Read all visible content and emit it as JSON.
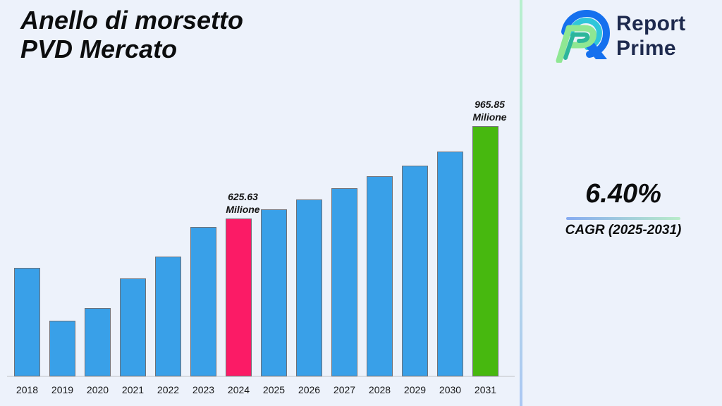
{
  "title": {
    "line1": "Anello di morsetto",
    "line2": "PVD Mercato"
  },
  "brand": {
    "name_line1": "Report",
    "name_line2": "Prime",
    "colors": {
      "text": "#1e2a4e",
      "logo_blue": "#1570ee",
      "logo_cyan": "#2fc6da",
      "logo_light_green": "#8fe793",
      "logo_teal_green": "#2db69b"
    }
  },
  "cagr": {
    "value": "6.40%",
    "label": "CAGR (2025-2031)"
  },
  "chart_data": {
    "type": "bar",
    "title": "Anello di morsetto PVD Mercato",
    "xlabel": "",
    "ylabel": "",
    "grid": false,
    "y_axis_visible": false,
    "legend": null,
    "categories": [
      "2018",
      "2019",
      "2020",
      "2021",
      "2022",
      "2023",
      "2024",
      "2025",
      "2026",
      "2027",
      "2028",
      "2029",
      "2030",
      "2031"
    ],
    "values": [
      444,
      249,
      296,
      405,
      485,
      594,
      625.63,
      659,
      696,
      737,
      781,
      820,
      872,
      965.85
    ],
    "labeled_values_only": {
      "2024": 625.63,
      "2031": 965.85
    },
    "unit_label": "Milione",
    "labeled_points": [
      {
        "category": "2024",
        "value_label": "625.63",
        "unit_label": "Milione"
      },
      {
        "category": "2031",
        "value_label": "965.85",
        "unit_label": "Milione"
      }
    ],
    "colors": {
      "default_bar": "#39a0e8",
      "per_year": {
        "2024": "#fb1b66",
        "2031": "#47b80f"
      },
      "bar_border": "#6f7178",
      "axis_line": "#d7dae0",
      "background": "#edf2fb"
    }
  }
}
